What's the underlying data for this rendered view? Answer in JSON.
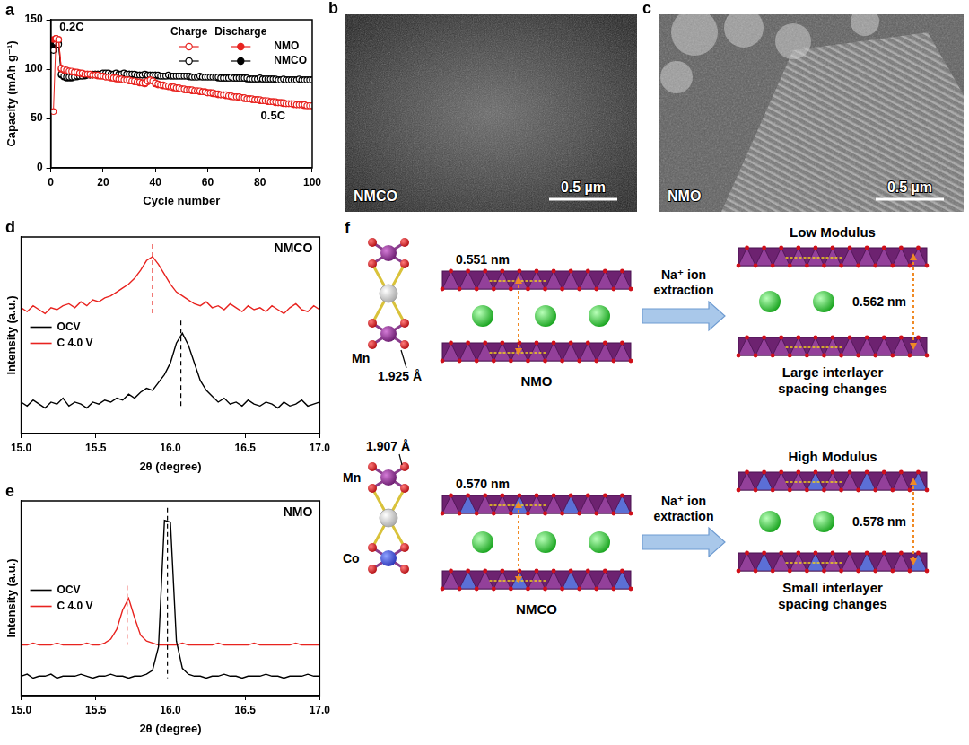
{
  "chart_data": [
    {
      "panel": "a",
      "type": "line",
      "marker": "circle",
      "xlabel": "Cycle number",
      "ylabel": "Capacity (mAh g⁻¹)",
      "xlim": [
        0,
        100
      ],
      "xticks": [
        0,
        20,
        40,
        60,
        80,
        100
      ],
      "ylim": [
        0,
        150
      ],
      "yticks": [
        0,
        50,
        100,
        150
      ],
      "grid": false,
      "legend": "upper right",
      "legend_headers": [
        "Charge",
        "Discharge"
      ],
      "annotations": [
        {
          "text": "0.2C",
          "x": 8,
          "y": 142
        },
        {
          "text": "0.5C",
          "x": 85,
          "y": 52
        }
      ],
      "x": [
        1,
        2,
        3,
        4,
        5,
        6,
        7,
        8,
        9,
        10,
        11,
        12,
        13,
        14,
        15,
        16,
        17,
        18,
        19,
        20,
        21,
        22,
        23,
        24,
        25,
        26,
        27,
        28,
        29,
        30,
        31,
        32,
        33,
        34,
        35,
        36,
        37,
        38,
        39,
        40,
        41,
        42,
        43,
        44,
        45,
        46,
        47,
        48,
        49,
        50,
        51,
        52,
        53,
        54,
        55,
        56,
        57,
        58,
        59,
        60,
        61,
        62,
        63,
        64,
        65,
        66,
        67,
        68,
        69,
        70,
        71,
        72,
        73,
        74,
        75,
        76,
        77,
        78,
        79,
        80,
        81,
        82,
        83,
        84,
        85,
        86,
        87,
        88,
        89,
        90,
        91,
        92,
        93,
        94,
        95,
        96,
        97,
        98,
        99,
        100
      ],
      "series": [
        {
          "name": "NMO",
          "color": "#e8231f",
          "charge": [
            57,
            131,
            130,
            101,
            100,
            99,
            98,
            98,
            97,
            97,
            96,
            96,
            95,
            95,
            95,
            94,
            94,
            94,
            93,
            93,
            92,
            92,
            92,
            91,
            91,
            90,
            90,
            89,
            89,
            89,
            88,
            88,
            87,
            87,
            86,
            86,
            88,
            89,
            88,
            86,
            85,
            84,
            84,
            83,
            83,
            82,
            82,
            81,
            81,
            80,
            80,
            79,
            79,
            79,
            78,
            78,
            78,
            77,
            77,
            76,
            76,
            76,
            75,
            75,
            74,
            74,
            74,
            73,
            73,
            72,
            72,
            72,
            71,
            71,
            70,
            70,
            70,
            69,
            69,
            69,
            68,
            68,
            68,
            67,
            67,
            67,
            66,
            66,
            66,
            65,
            65,
            65,
            65,
            64,
            64,
            64,
            64,
            63,
            63,
            63
          ],
          "discharge": [
            130,
            131,
            130,
            100,
            99,
            98,
            98,
            97,
            97,
            96,
            96,
            95,
            95,
            95,
            94,
            94,
            94,
            93,
            93,
            93,
            92,
            92,
            91,
            91,
            90,
            90,
            90,
            89,
            89,
            88,
            88,
            87,
            87,
            86,
            86,
            85,
            87,
            89,
            88,
            85,
            84,
            84,
            83,
            83,
            82,
            82,
            81,
            81,
            80,
            80,
            79,
            79,
            79,
            78,
            78,
            78,
            77,
            77,
            77,
            76,
            76,
            75,
            75,
            74,
            74,
            74,
            73,
            73,
            72,
            72,
            72,
            71,
            71,
            70,
            70,
            70,
            69,
            69,
            69,
            68,
            68,
            68,
            67,
            67,
            67,
            66,
            66,
            66,
            65,
            65,
            65,
            65,
            64,
            64,
            64,
            64,
            63,
            63,
            63,
            63
          ]
        },
        {
          "name": "NMCO",
          "color": "#000000",
          "charge": [
            119,
            127,
            125,
            95,
            93,
            92,
            92,
            92,
            92,
            93,
            93,
            93,
            94,
            94,
            94,
            95,
            95,
            95,
            95,
            96,
            96,
            96,
            95,
            95,
            96,
            95,
            95,
            96,
            95,
            95,
            95,
            95,
            94,
            94,
            94,
            95,
            94,
            94,
            94,
            94,
            94,
            93,
            93,
            93,
            94,
            93,
            93,
            93,
            93,
            93,
            93,
            93,
            93,
            92,
            92,
            92,
            93,
            92,
            92,
            92,
            92,
            92,
            92,
            92,
            91,
            91,
            91,
            91,
            92,
            91,
            91,
            91,
            91,
            91,
            91,
            90,
            90,
            90,
            90,
            91,
            90,
            90,
            90,
            90,
            90,
            90,
            89,
            89,
            90,
            89,
            89,
            89,
            89,
            89,
            90,
            89,
            89,
            89,
            89,
            89
          ],
          "discharge": [
            124,
            128,
            126,
            94,
            92,
            91,
            91,
            91,
            92,
            92,
            93,
            93,
            93,
            94,
            94,
            94,
            95,
            95,
            95,
            95,
            95,
            95,
            95,
            95,
            95,
            95,
            95,
            95,
            95,
            95,
            94,
            94,
            94,
            94,
            94,
            94,
            94,
            94,
            94,
            94,
            93,
            93,
            93,
            93,
            93,
            93,
            93,
            93,
            93,
            93,
            93,
            93,
            92,
            92,
            92,
            92,
            92,
            92,
            92,
            92,
            92,
            92,
            92,
            91,
            91,
            91,
            91,
            91,
            91,
            91,
            91,
            91,
            91,
            91,
            90,
            90,
            90,
            90,
            90,
            90,
            90,
            90,
            90,
            90,
            90,
            89,
            89,
            89,
            89,
            89,
            89,
            89,
            89,
            89,
            89,
            89,
            89,
            89,
            89,
            89
          ]
        }
      ]
    },
    {
      "panel": "d",
      "type": "line",
      "title": "NMCO",
      "xlabel": "2θ (degree)",
      "ylabel": "Intensity (a.u.)",
      "xlim": [
        15,
        17
      ],
      "xticks": [
        {
          "value": 15,
          "label": "15.0"
        },
        15.5,
        {
          "value": 16,
          "label": "16.0"
        },
        16.5,
        {
          "value": 17,
          "label": "17.0"
        }
      ],
      "ylim": [
        0,
        10
      ],
      "tick_labels": "x",
      "grid": false,
      "legend": "center left",
      "x": [
        15,
        15.04,
        15.08,
        15.12,
        15.16,
        15.2,
        15.24,
        15.28,
        15.32,
        15.36,
        15.4,
        15.44,
        15.48,
        15.52,
        15.56,
        15.6,
        15.64,
        15.68,
        15.72,
        15.76,
        15.8,
        15.84,
        15.88,
        15.92,
        15.96,
        16,
        16.04,
        16.08,
        16.12,
        16.16,
        16.2,
        16.24,
        16.28,
        16.32,
        16.36,
        16.4,
        16.44,
        16.48,
        16.52,
        16.56,
        16.6,
        16.64,
        16.68,
        16.72,
        16.76,
        16.8,
        16.84,
        16.88,
        16.92,
        16.96,
        17
      ],
      "series": [
        {
          "name": "OCV",
          "color": "#000000",
          "peak": 16.07,
          "values": [
            1.6,
            1.4,
            1.7,
            1.5,
            1.3,
            1.6,
            1.5,
            1.8,
            1.4,
            1.6,
            1.5,
            1.3,
            1.6,
            1.5,
            1.7,
            1.6,
            1.8,
            1.7,
            2.0,
            1.8,
            2.1,
            2.3,
            2.2,
            2.6,
            3.0,
            3.6,
            4.6,
            5.1,
            4.5,
            3.6,
            2.7,
            2.2,
            1.9,
            1.6,
            1.8,
            1.5,
            1.6,
            1.4,
            1.7,
            1.5,
            1.4,
            1.6,
            1.5,
            1.3,
            1.6,
            1.4,
            1.5,
            1.7,
            1.4,
            1.5,
            1.6
          ]
        },
        {
          "name": "C 4.0 V",
          "color": "#e8231f",
          "peak": 15.88,
          "values": [
            6.4,
            6.2,
            6.5,
            6.3,
            6.1,
            6.4,
            6.3,
            6.5,
            6.6,
            6.4,
            6.7,
            6.5,
            6.8,
            6.7,
            6.9,
            7.0,
            7.2,
            7.4,
            7.6,
            7.9,
            8.3,
            8.8,
            9.0,
            8.6,
            8.1,
            7.6,
            7.2,
            7.0,
            6.8,
            6.6,
            6.5,
            6.7,
            6.4,
            6.5,
            6.3,
            6.6,
            6.4,
            6.2,
            6.5,
            6.3,
            6.4,
            6.2,
            6.5,
            6.3,
            6.1,
            6.4,
            6.6,
            6.3,
            6.2,
            6.5,
            6.3
          ]
        }
      ]
    },
    {
      "panel": "e",
      "type": "line",
      "title": "NMO",
      "xlabel": "2θ (degree)",
      "ylabel": "Intensity (a.u.)",
      "xlim": [
        15,
        17
      ],
      "xticks": [
        {
          "value": 15,
          "label": "15.0"
        },
        15.5,
        {
          "value": 16,
          "label": "16.0"
        },
        16.5,
        {
          "value": 17,
          "label": "17.0"
        }
      ],
      "ylim": [
        0,
        10
      ],
      "tick_labels": "x",
      "grid": false,
      "legend": "center left",
      "x": [
        15,
        15.04,
        15.08,
        15.12,
        15.16,
        15.2,
        15.24,
        15.28,
        15.32,
        15.36,
        15.4,
        15.44,
        15.48,
        15.52,
        15.56,
        15.6,
        15.64,
        15.68,
        15.72,
        15.76,
        15.8,
        15.84,
        15.88,
        15.92,
        15.96,
        16,
        16.04,
        16.08,
        16.12,
        16.16,
        16.2,
        16.24,
        16.28,
        16.32,
        16.36,
        16.4,
        16.44,
        16.48,
        16.52,
        16.56,
        16.6,
        16.64,
        16.68,
        16.72,
        16.76,
        16.8,
        16.84,
        16.88,
        16.92,
        16.96,
        17
      ],
      "series": [
        {
          "name": "OCV",
          "color": "#000000",
          "peak": 15.98,
          "values": [
            1.0,
            1.1,
            0.9,
            1.0,
            1.0,
            1.1,
            0.9,
            1.0,
            1.0,
            1.0,
            1.1,
            1.0,
            0.9,
            1.0,
            1.0,
            1.1,
            1.0,
            1.0,
            0.9,
            1.0,
            1.0,
            1.1,
            1.3,
            2.5,
            9.0,
            8.9,
            2.8,
            1.4,
            1.1,
            1.0,
            1.0,
            0.9,
            1.0,
            1.0,
            1.1,
            1.0,
            1.0,
            0.9,
            1.0,
            1.0,
            1.0,
            1.1,
            1.0,
            1.0,
            0.9,
            1.0,
            1.0,
            1.0,
            1.1,
            1.0,
            1.0
          ]
        },
        {
          "name": "C 4.0 V",
          "color": "#e8231f",
          "peak": 15.71,
          "values": [
            2.6,
            2.6,
            2.7,
            2.6,
            2.6,
            2.6,
            2.7,
            2.6,
            2.6,
            2.6,
            2.6,
            2.7,
            2.6,
            2.6,
            2.7,
            2.9,
            3.4,
            4.4,
            5.0,
            4.0,
            3.1,
            2.8,
            2.7,
            2.6,
            2.6,
            2.6,
            2.6,
            2.7,
            2.6,
            2.6,
            2.6,
            2.6,
            2.6,
            2.7,
            2.6,
            2.6,
            2.6,
            2.6,
            2.6,
            2.7,
            2.6,
            2.6,
            2.6,
            2.6,
            2.6,
            2.6,
            2.7,
            2.6,
            2.6,
            2.6,
            2.6
          ]
        }
      ]
    }
  ],
  "images": [
    {
      "panel": "b",
      "label": "NMCO",
      "scale_bar": "0.5 µm"
    },
    {
      "panel": "c",
      "label": "NMO",
      "scale_bar": "0.5 µm"
    }
  ],
  "diagram": {
    "panel": "f",
    "rows": [
      {
        "atom_labels": [
          "Mn"
        ],
        "bond_length": "1.925 Å",
        "initial": {
          "label": "NMO",
          "spacing": "0.551 nm"
        },
        "process": "Na⁺ ion extraction",
        "final": {
          "title": "Low Modulus",
          "spacing": "0.562 nm",
          "note": "Large interlayer spacing changes"
        }
      },
      {
        "atom_labels": [
          "Mn",
          "Co"
        ],
        "bond_length": "1.907 Å",
        "initial": {
          "label": "NMCO",
          "spacing": "0.570 nm"
        },
        "process": "Na⁺ ion extraction",
        "final": {
          "title": "High Modulus",
          "spacing": "0.578 nm",
          "note": "Small interlayer spacing changes"
        }
      }
    ]
  }
}
